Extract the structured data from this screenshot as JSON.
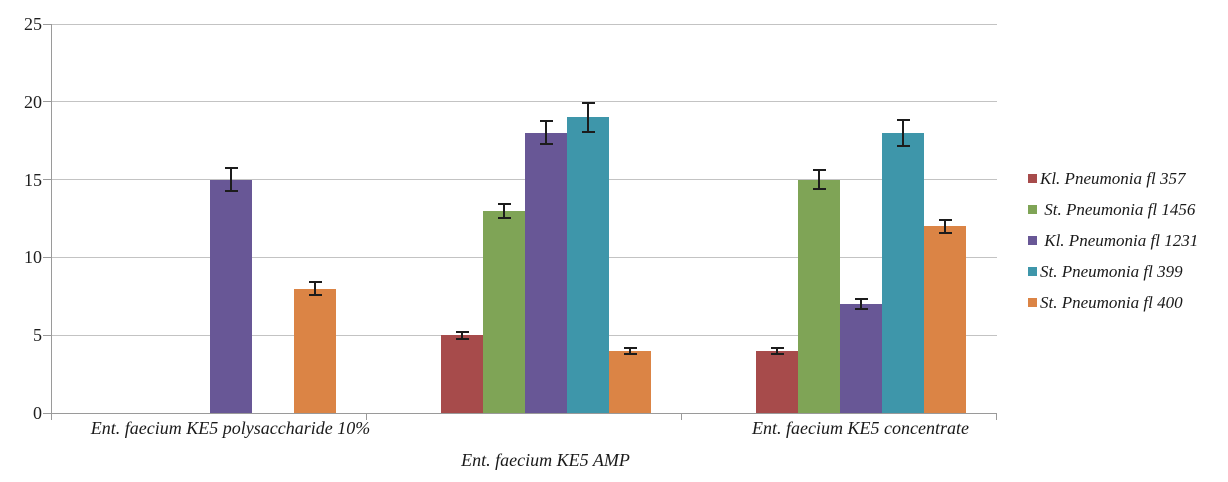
{
  "chart_data": {
    "type": "bar",
    "title": "",
    "xlabel": "",
    "ylabel": "",
    "categories": [
      "Ent. faecium KE5 polysaccharide 10%",
      "Ent. faecium KE5 AMP",
      "Ent. faecium KE5 concentrate"
    ],
    "series": [
      {
        "name": "Kl. Pneumonia fl 357",
        "color": "#A74B4B",
        "values": [
          0,
          5,
          4
        ],
        "errors": [
          0,
          0.3,
          0.25
        ]
      },
      {
        "name": " St. Pneumonia fl 1456",
        "color": "#7FA456",
        "values": [
          0,
          13,
          15
        ],
        "errors": [
          0,
          0.5,
          0.7
        ]
      },
      {
        "name": " Kl. Pneumonia fl 1231",
        "color": "#685796",
        "values": [
          15,
          18,
          7
        ],
        "errors": [
          0.8,
          0.8,
          0.4
        ]
      },
      {
        "name": "St. Pneumonia fl 399",
        "color": "#3E96AA",
        "values": [
          0,
          19,
          18
        ],
        "errors": [
          0,
          1.0,
          0.9
        ]
      },
      {
        "name": "St. Pneumonia fl 400",
        "color": "#DB8445",
        "values": [
          8,
          4,
          12
        ],
        "errors": [
          0.5,
          0.25,
          0.5
        ]
      }
    ],
    "ylim": [
      0,
      25
    ],
    "yticks": [
      0,
      5,
      10,
      15,
      20,
      25
    ],
    "grid": true,
    "error_bars": true,
    "legend_position": "right"
  },
  "colors": {
    "background": "#FFFFFF",
    "gridline": "#C3C3C3",
    "axis": "#9A9A9A",
    "error_bar": "#1C1C1C",
    "text": "#1A1A1A"
  }
}
